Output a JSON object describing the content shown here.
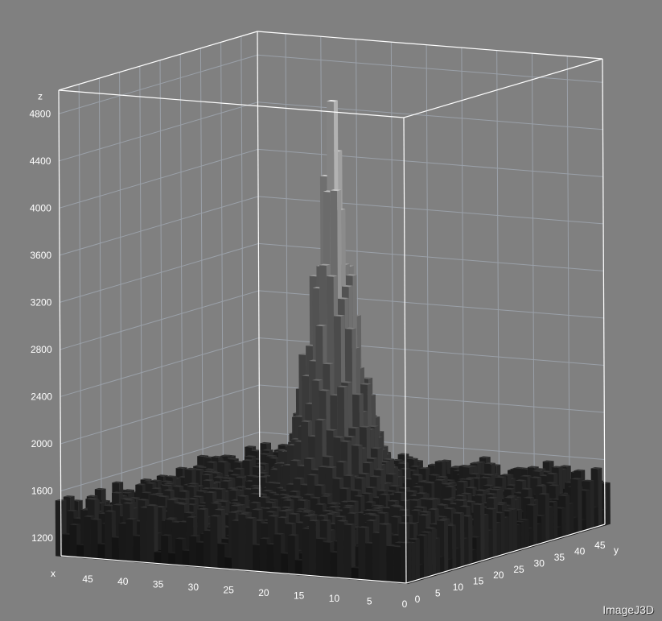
{
  "app": {
    "watermark": "ImageJ3D"
  },
  "chart_data": {
    "type": "surface",
    "axes": {
      "x": {
        "label": "x",
        "ticks": [
          45,
          40,
          35,
          30,
          25,
          20,
          15,
          10,
          5,
          0
        ],
        "range": [
          0,
          49
        ]
      },
      "y": {
        "label": "y",
        "ticks": [
          0,
          5,
          10,
          15,
          20,
          25,
          30,
          35,
          40,
          45
        ],
        "range": [
          0,
          49
        ]
      },
      "z": {
        "label": "z",
        "ticks": [
          1200,
          1600,
          2000,
          2400,
          2800,
          3200,
          3600,
          4000,
          4400,
          4800
        ],
        "range": [
          1050,
          5000
        ]
      }
    },
    "surface": {
      "grid_size": [
        50,
        50
      ],
      "baseline": 1150,
      "peak": {
        "x": 24,
        "y": 24,
        "height": 5000
      },
      "background_noise": [
        1100,
        1550
      ],
      "colormap": "grayscale"
    },
    "grid": true,
    "box": true,
    "colors": {
      "background": "#808080",
      "grid": "#9aa0a8",
      "box": "#ffffff",
      "text": "#ffffff"
    }
  }
}
